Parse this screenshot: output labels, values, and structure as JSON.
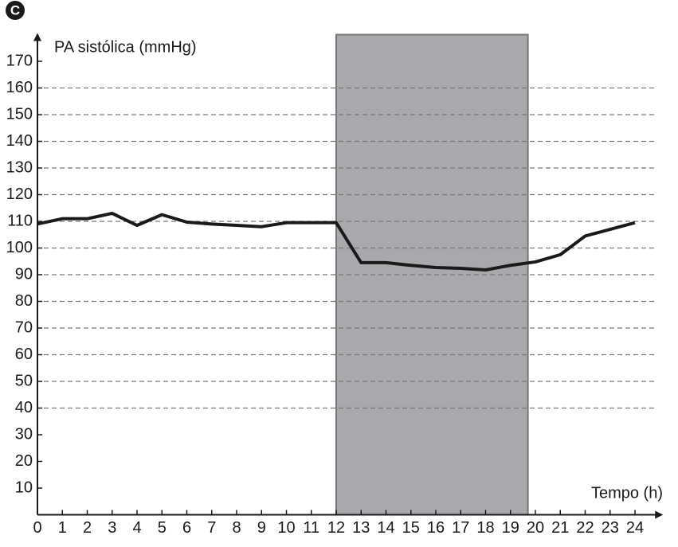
{
  "chart_data": {
    "type": "line",
    "panel_label": "C",
    "y_label": "PA sistólica (mmHg)",
    "x_label": "Tempo (h)",
    "x": [
      0,
      1,
      2,
      3,
      4,
      5,
      6,
      7,
      8,
      9,
      10,
      11,
      12,
      13,
      14,
      15,
      16,
      17,
      18,
      19,
      20,
      21,
      22,
      23,
      24
    ],
    "series": [
      {
        "color": "#1a1a1a",
        "values": [
          109,
          111,
          111,
          113,
          108.5,
          112.5,
          109.7,
          109,
          108.5,
          108,
          109.5,
          109.5,
          109.5,
          94.5,
          94.5,
          93.5,
          92.7,
          92.4,
          91.8,
          93.5,
          94.8,
          97.5,
          104.5,
          107,
          109.5
        ]
      }
    ],
    "shaded_x": [
      12,
      19.7
    ],
    "shaded_color": "#a7a9ac",
    "xlim": [
      0,
      25
    ],
    "ylim": [
      0,
      180
    ],
    "xticks": [
      0,
      1,
      2,
      3,
      4,
      5,
      6,
      7,
      8,
      9,
      10,
      11,
      12,
      13,
      14,
      15,
      16,
      17,
      18,
      19,
      20,
      21,
      22,
      23,
      24
    ],
    "yticks": [
      10,
      20,
      30,
      40,
      50,
      60,
      70,
      80,
      90,
      100,
      110,
      120,
      130,
      140,
      150,
      160,
      170
    ],
    "grid": true,
    "grid_range": [
      40,
      160
    ]
  }
}
